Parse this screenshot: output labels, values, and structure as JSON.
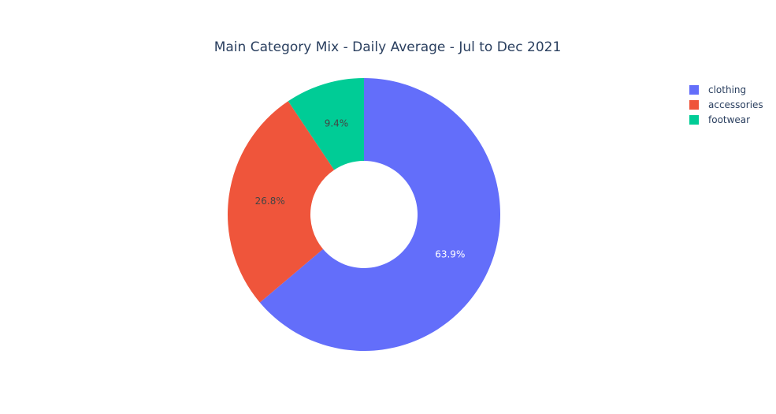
{
  "chart_data": {
    "type": "pie",
    "title": "Main Category Mix - Daily Average - Jul to Dec 2021",
    "hole": true,
    "legend_placement": "top-right",
    "slices": [
      {
        "label": "clothing",
        "percent": 63.9,
        "display": "63.9%",
        "color": "#636efa",
        "label_color": "#ffffff"
      },
      {
        "label": "accessories",
        "percent": 26.8,
        "display": "26.8%",
        "color": "#ef553b",
        "label_color": "#444444"
      },
      {
        "label": "footwear",
        "percent": 9.4,
        "display": "9.4%",
        "color": "#00cc96",
        "label_color": "#444444"
      }
    ]
  }
}
